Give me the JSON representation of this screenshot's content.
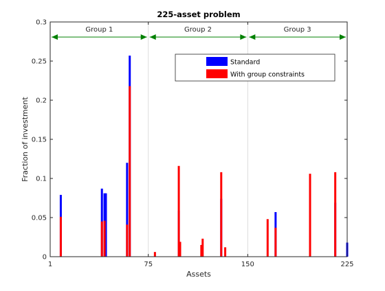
{
  "chart_data": {
    "type": "bar",
    "title": "225-asset problem",
    "xlabel": "Assets",
    "ylabel": "Fraction of investment",
    "xlim": [
      1,
      225
    ],
    "ylim": [
      0,
      0.3
    ],
    "xticks": [
      1,
      75,
      150,
      225
    ],
    "yticks": [
      0,
      0.05,
      0.1,
      0.15,
      0.2,
      0.25,
      0.3
    ],
    "grid": "x-only",
    "legend_position": "top-right",
    "groups": [
      {
        "label": "Group 1",
        "range": [
          1,
          75
        ]
      },
      {
        "label": "Group 2",
        "range": [
          75,
          150
        ]
      },
      {
        "label": "Group 3",
        "range": [
          150,
          225
        ]
      }
    ],
    "series": [
      {
        "name": "Standard",
        "color": "#0000ff",
        "points": [
          {
            "x": 9,
            "y": 0.079
          },
          {
            "x": 40,
            "y": 0.087
          },
          {
            "x": 42,
            "y": 0.081
          },
          {
            "x": 43,
            "y": 0.081
          },
          {
            "x": 59,
            "y": 0.12
          },
          {
            "x": 61,
            "y": 0.257
          },
          {
            "x": 98,
            "y": 0.059
          },
          {
            "x": 130,
            "y": 0.074
          },
          {
            "x": 171,
            "y": 0.057
          },
          {
            "x": 197,
            "y": 0.099
          },
          {
            "x": 216,
            "y": 0.069
          },
          {
            "x": 225,
            "y": 0.018
          }
        ]
      },
      {
        "name": "With group constraints",
        "color": "#ff0000",
        "points": [
          {
            "x": 9,
            "y": 0.051
          },
          {
            "x": 40,
            "y": 0.045
          },
          {
            "x": 42,
            "y": 0.046
          },
          {
            "x": 59,
            "y": 0.041
          },
          {
            "x": 61,
            "y": 0.218
          },
          {
            "x": 80,
            "y": 0.006
          },
          {
            "x": 98,
            "y": 0.116
          },
          {
            "x": 99,
            "y": 0.019
          },
          {
            "x": 115,
            "y": 0.015
          },
          {
            "x": 116,
            "y": 0.023
          },
          {
            "x": 130,
            "y": 0.108
          },
          {
            "x": 133,
            "y": 0.012
          },
          {
            "x": 165,
            "y": 0.048
          },
          {
            "x": 171,
            "y": 0.037
          },
          {
            "x": 197,
            "y": 0.106
          },
          {
            "x": 216,
            "y": 0.108
          }
        ]
      }
    ]
  }
}
